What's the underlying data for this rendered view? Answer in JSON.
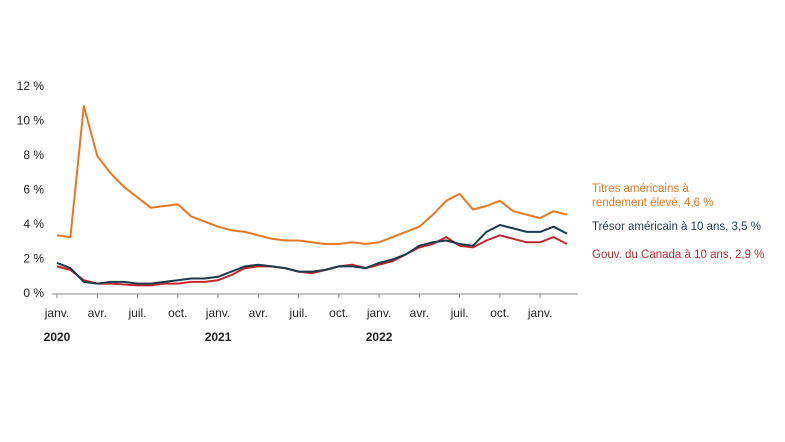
{
  "chart_data": {
    "type": "line",
    "categories": [
      "janv.",
      null,
      null,
      "avr.",
      null,
      null,
      "juil.",
      null,
      null,
      "oct.",
      null,
      null,
      "janv.",
      null,
      null,
      "avr.",
      null,
      null,
      "juil.",
      null,
      null,
      "oct.",
      null,
      null,
      "janv.",
      null,
      null,
      "avr.",
      null,
      null,
      "juil.",
      null,
      null,
      "oct.",
      null,
      null,
      "janv.",
      null,
      null
    ],
    "years": [
      "2020",
      "2021",
      "2022"
    ],
    "series": [
      {
        "name": "Titres américains à rendement élevé, 4,6 %",
        "color": "#e87722",
        "values": [
          3.4,
          3.3,
          10.9,
          8.0,
          7.0,
          6.2,
          5.6,
          5.0,
          5.1,
          5.2,
          4.5,
          4.2,
          3.9,
          3.7,
          3.6,
          3.4,
          3.2,
          3.1,
          3.1,
          3.0,
          2.9,
          2.9,
          3.0,
          2.9,
          3.0,
          3.3,
          3.6,
          3.9,
          4.6,
          5.4,
          5.8,
          4.9,
          5.1,
          5.4,
          4.8,
          4.6,
          4.4,
          4.8,
          4.6
        ]
      },
      {
        "name": "Trésor américain à 10 ans, 3,5 %",
        "color": "#1b3a4b",
        "values": [
          1.8,
          1.5,
          0.7,
          0.6,
          0.7,
          0.7,
          0.6,
          0.6,
          0.7,
          0.8,
          0.9,
          0.9,
          1.0,
          1.3,
          1.6,
          1.7,
          1.6,
          1.5,
          1.3,
          1.3,
          1.4,
          1.6,
          1.6,
          1.5,
          1.8,
          2.0,
          2.3,
          2.8,
          3.0,
          3.1,
          2.9,
          2.8,
          3.6,
          4.0,
          3.8,
          3.6,
          3.6,
          3.9,
          3.5
        ]
      },
      {
        "name": "Gouv. du Canada à 10 ans, 2,9 %",
        "color": "#c0282e",
        "values": [
          1.6,
          1.4,
          0.8,
          0.6,
          0.6,
          0.55,
          0.5,
          0.5,
          0.6,
          0.6,
          0.7,
          0.7,
          0.8,
          1.1,
          1.5,
          1.6,
          1.6,
          1.5,
          1.3,
          1.2,
          1.4,
          1.6,
          1.7,
          1.5,
          1.7,
          1.9,
          2.3,
          2.7,
          2.9,
          3.3,
          2.8,
          2.7,
          3.1,
          3.4,
          3.2,
          3.0,
          3.0,
          3.3,
          2.9
        ]
      }
    ],
    "ylim": [
      0,
      12
    ],
    "yticks": [
      {
        "value": 0,
        "label": "0 %"
      },
      {
        "value": 2,
        "label": "2 %"
      },
      {
        "value": 4,
        "label": "4 %"
      },
      {
        "value": 6,
        "label": "6 %"
      },
      {
        "value": 8,
        "label": "8 %"
      },
      {
        "value": 10,
        "label": "10 %"
      },
      {
        "value": 12,
        "label": "12 %"
      }
    ]
  }
}
